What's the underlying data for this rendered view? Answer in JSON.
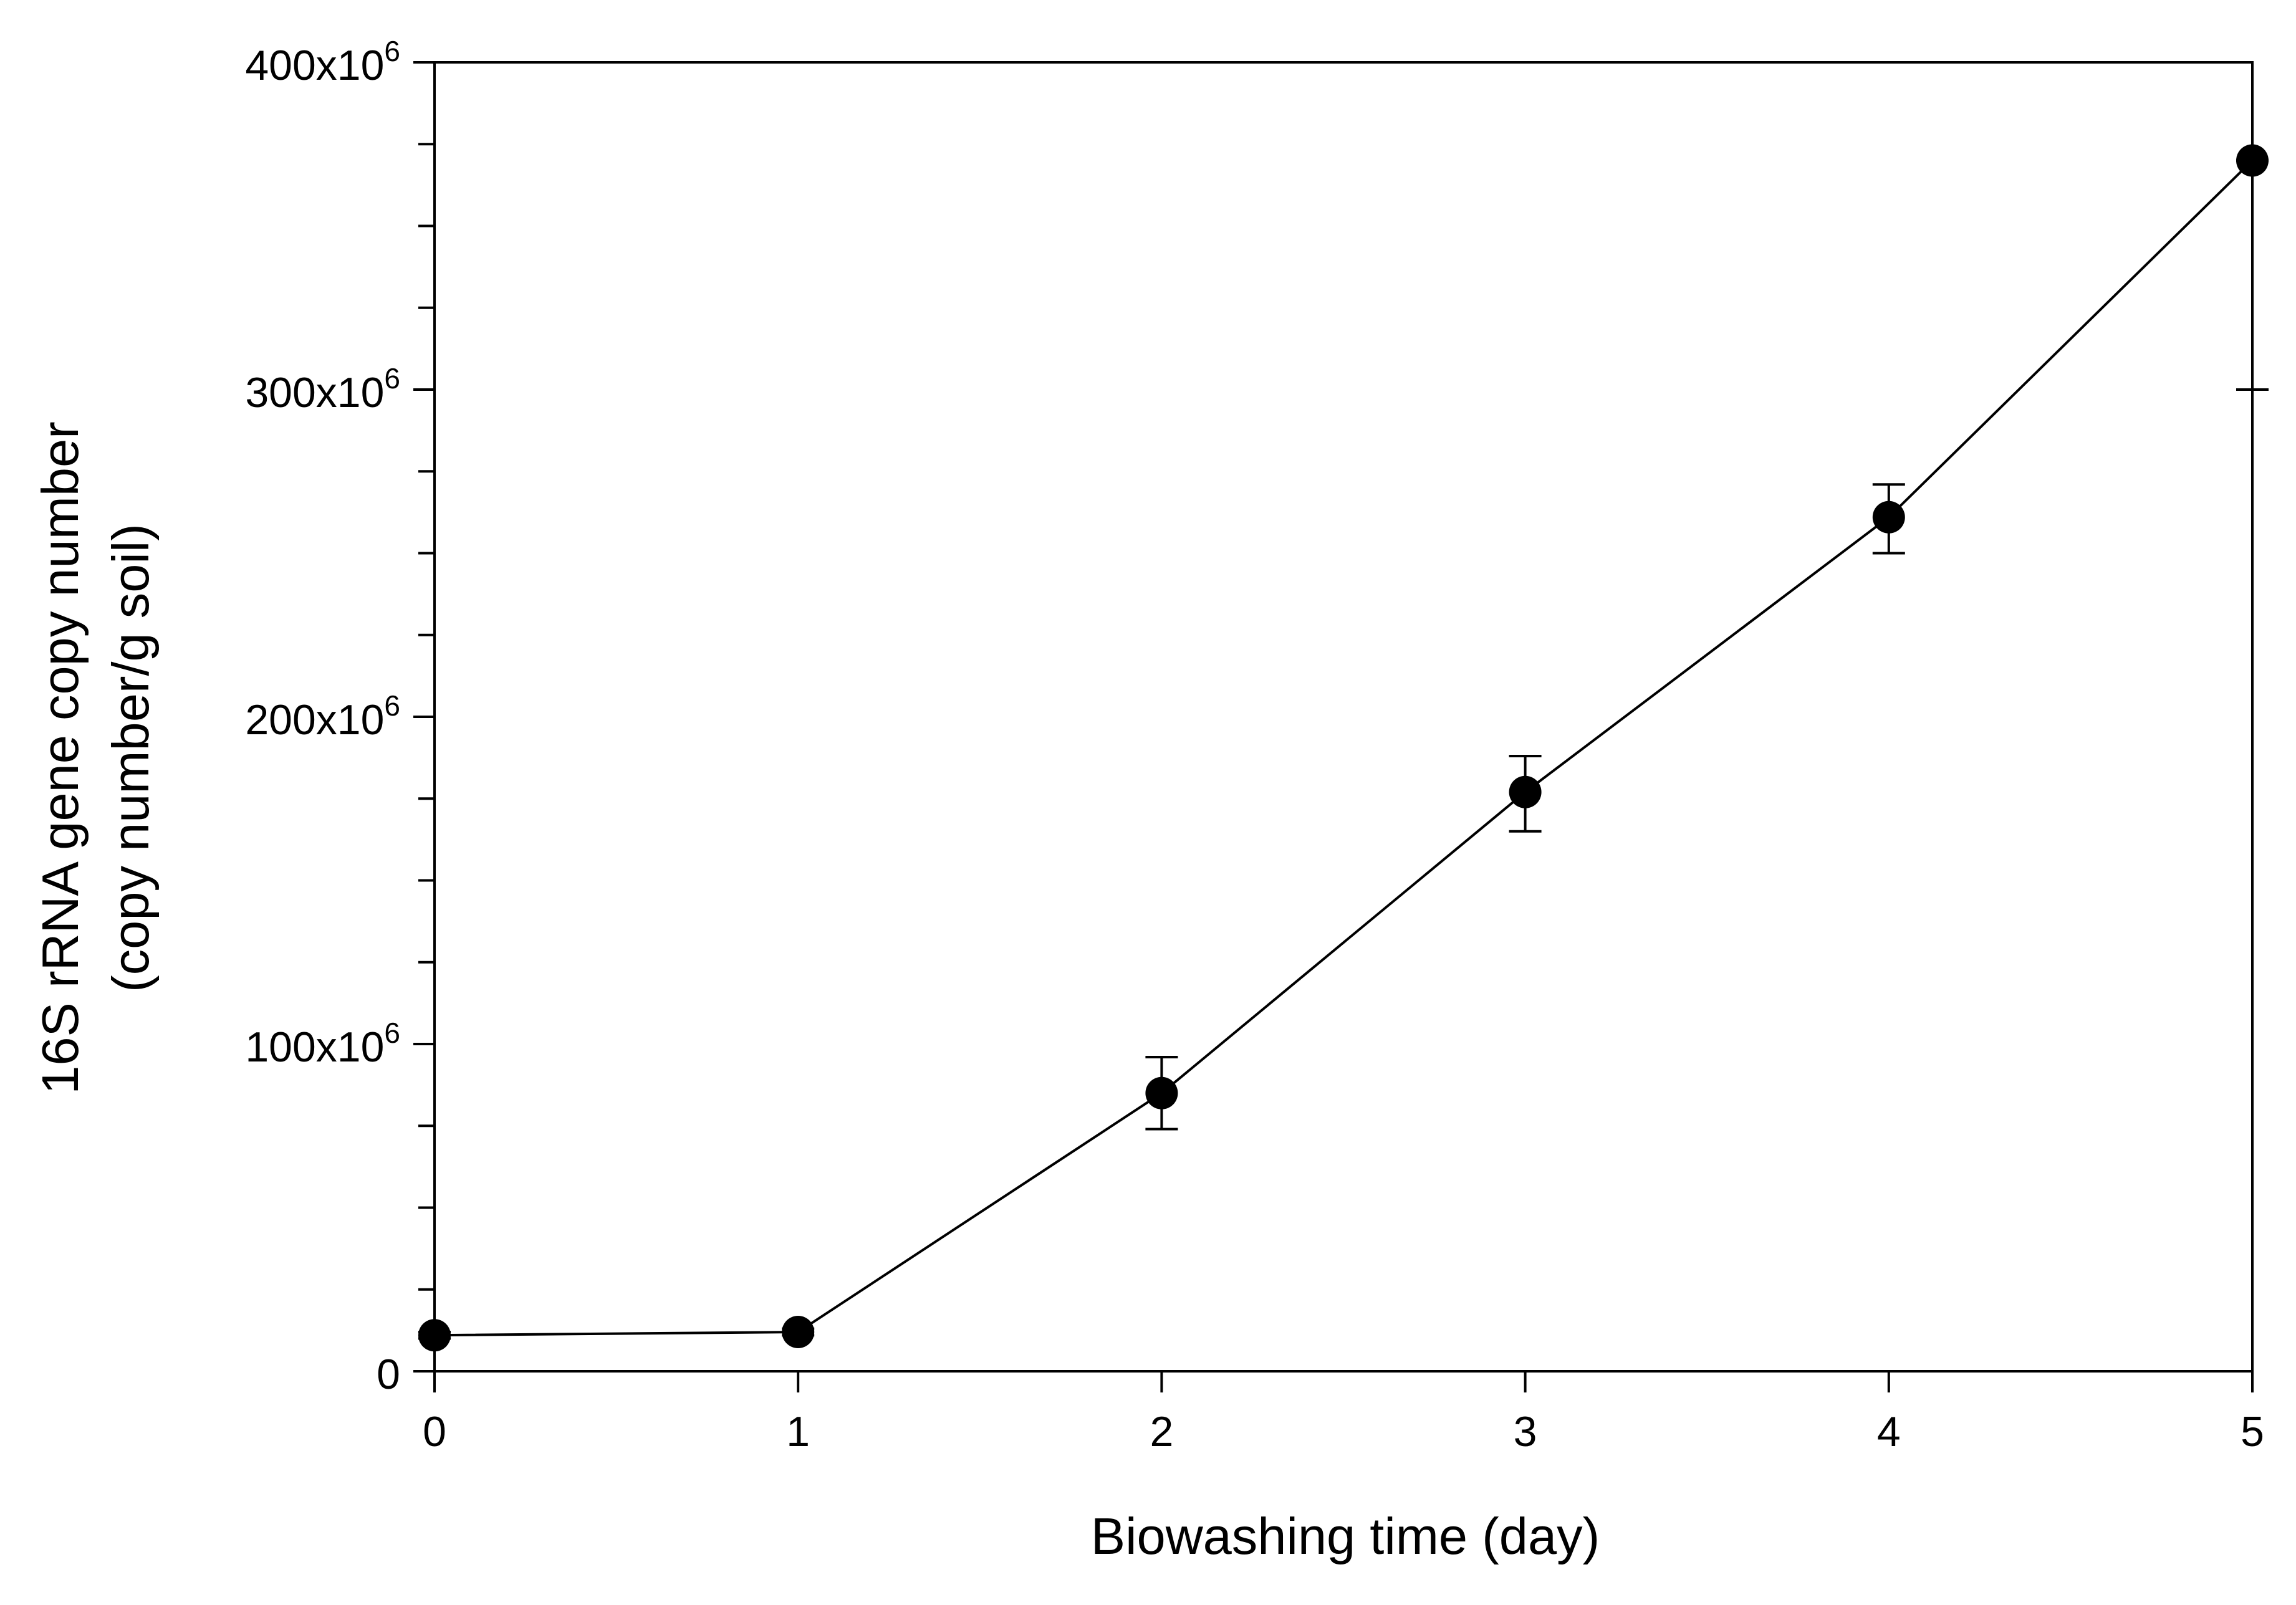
{
  "chart_data": {
    "type": "line",
    "title": "",
    "xlabel": "Biowashing time (day)",
    "ylabel_line1": "16S rRNA gene copy number",
    "ylabel_line2": "(copy number/g soil)",
    "xlim": [
      0,
      5
    ],
    "ylim": [
      0,
      400000000
    ],
    "x_ticks": [
      {
        "value": 0,
        "label": "0"
      },
      {
        "value": 1,
        "label": "1"
      },
      {
        "value": 2,
        "label": "2"
      },
      {
        "value": 3,
        "label": "3"
      },
      {
        "value": 4,
        "label": "4"
      },
      {
        "value": 5,
        "label": "5"
      }
    ],
    "y_ticks": [
      {
        "value": 0,
        "mantissa": "0",
        "exponent": ""
      },
      {
        "value": 100000000,
        "mantissa": "100x10",
        "exponent": "6"
      },
      {
        "value": 200000000,
        "mantissa": "200x10",
        "exponent": "6"
      },
      {
        "value": 300000000,
        "mantissa": "300x10",
        "exponent": "6"
      },
      {
        "value": 400000000,
        "mantissa": "400x10",
        "exponent": "6"
      }
    ],
    "y_minor_step": 25000000,
    "grid": false,
    "marker": "filled-circle",
    "line_color": "#000000",
    "series": [
      {
        "x": [
          0,
          1,
          2,
          3,
          4,
          5
        ],
        "y": [
          11000000,
          12000000,
          85000000,
          177000000,
          261000000,
          370000000
        ],
        "err_low": [
          10000000,
          11000000,
          74000000,
          165000000,
          250000000,
          300000000
        ],
        "err_high": [
          12000000,
          13000000,
          96000000,
          188000000,
          271000000,
          370000000
        ]
      }
    ]
  }
}
